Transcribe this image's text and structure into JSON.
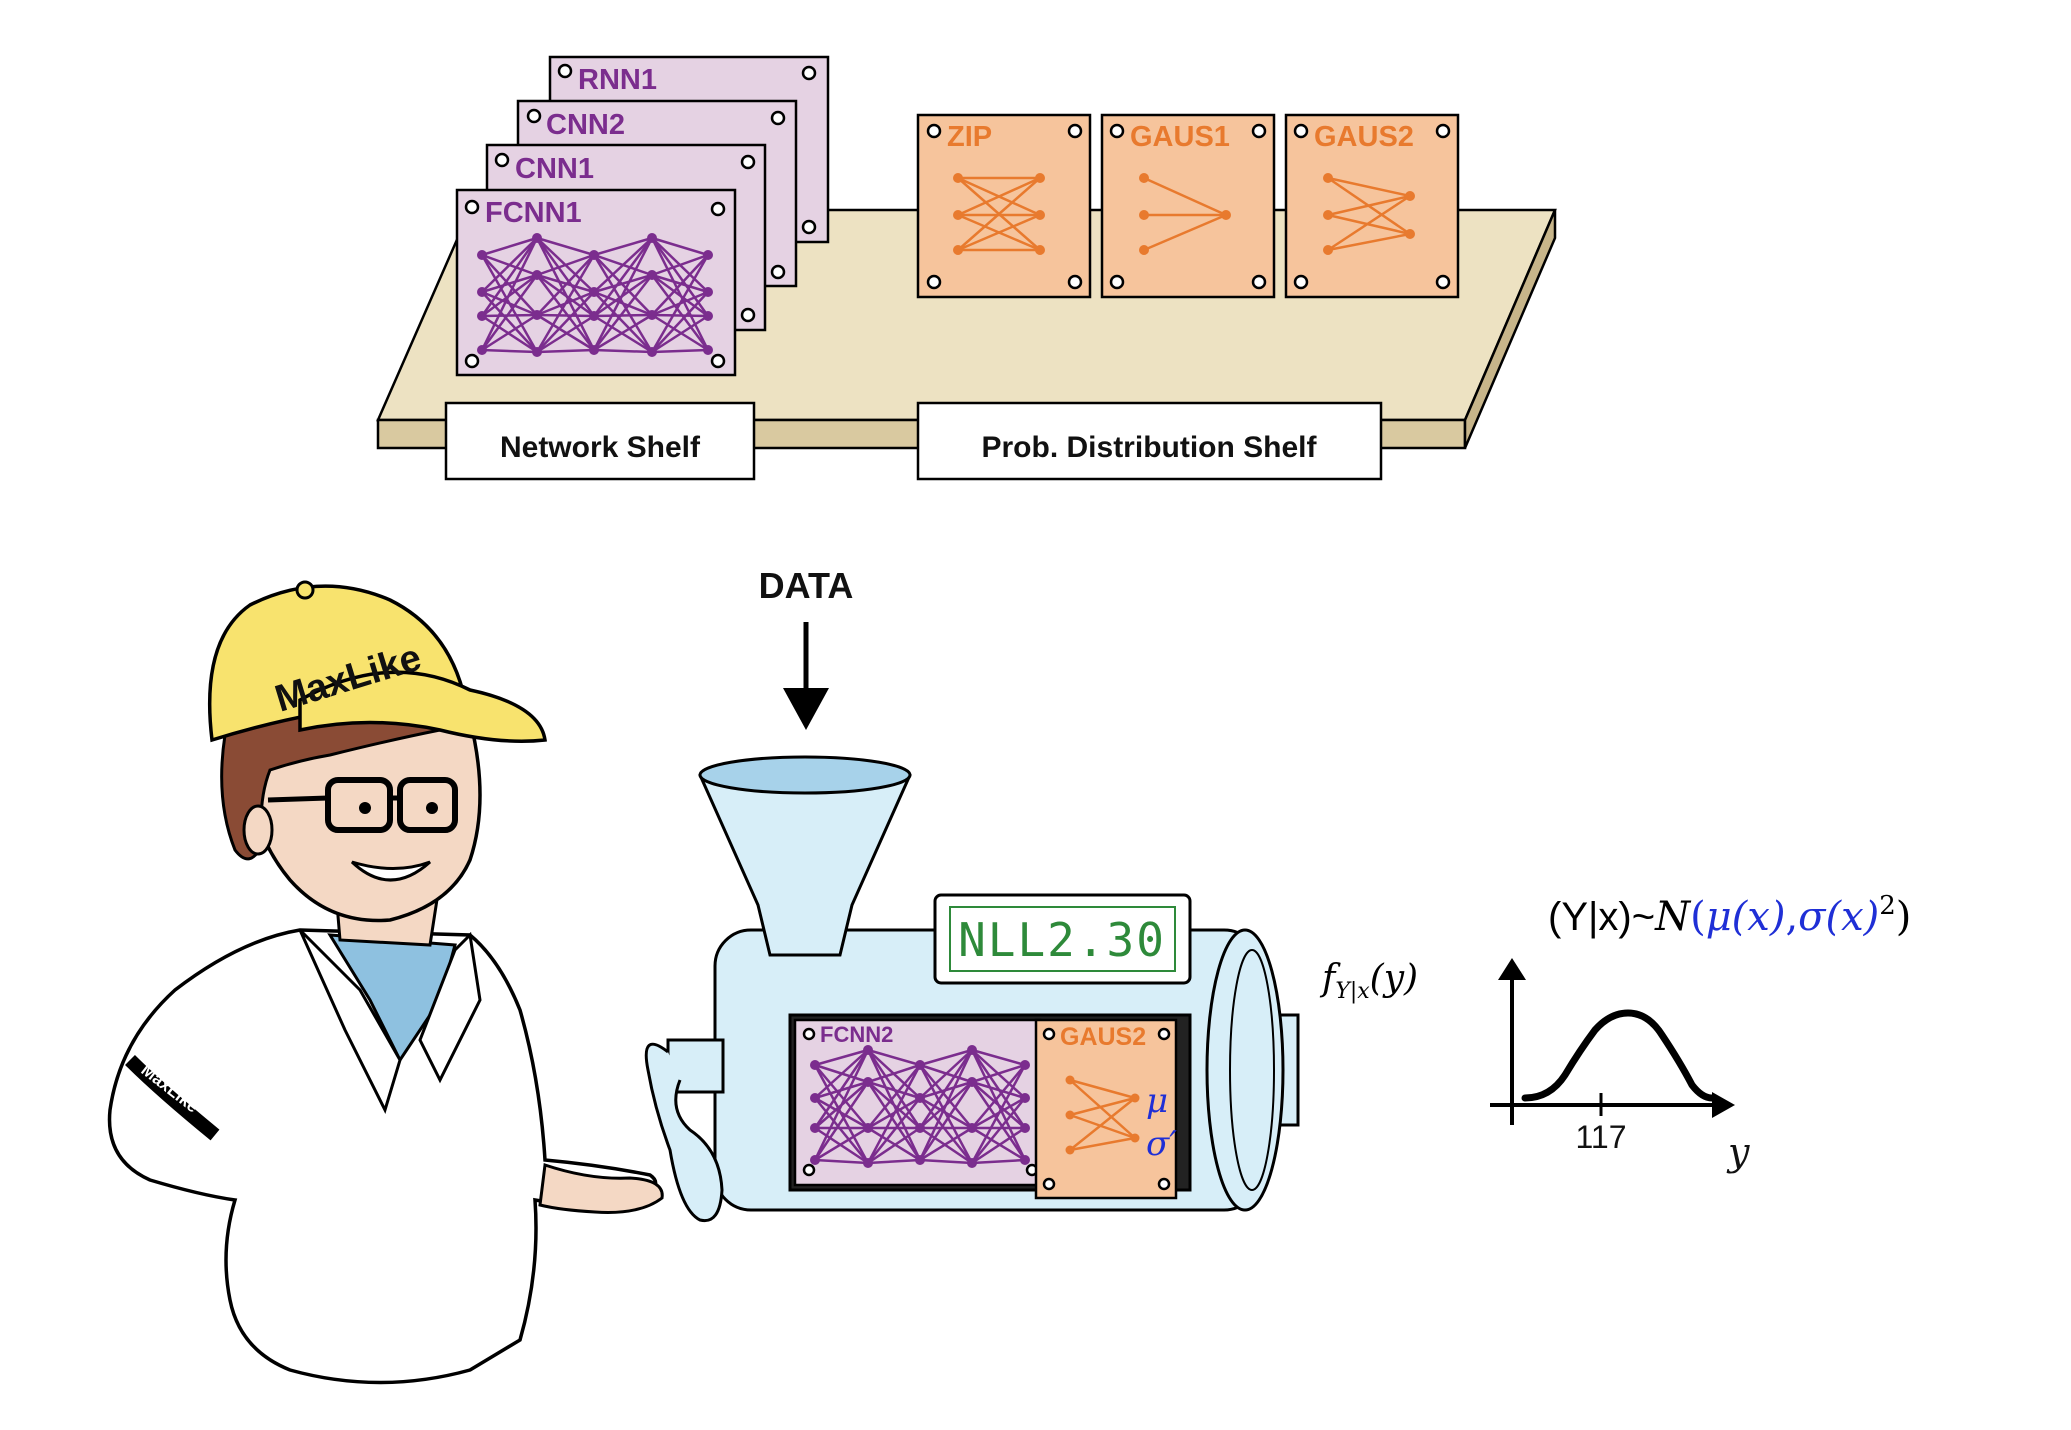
{
  "network_cards": [
    {
      "label": "RNN1"
    },
    {
      "label": "CNN2"
    },
    {
      "label": "CNN1"
    },
    {
      "label": "FCNN1"
    }
  ],
  "distribution_cards": [
    {
      "label": "ZIP"
    },
    {
      "label": "GAUS1"
    },
    {
      "label": "GAUS2"
    }
  ],
  "shelves": {
    "network_label": "Network Shelf",
    "distribution_label": "Prob. Distribution Shelf"
  },
  "machine": {
    "input_label": "DATA",
    "display": "NLL2.30",
    "network_slot": "FCNN2",
    "distribution_slot": "GAUS2",
    "output_mu": "μ",
    "output_sigma": "σ′"
  },
  "character": {
    "cap_text": "MaxLike",
    "sleeve_text": "MaxLike"
  },
  "formula": {
    "prefix": "(Y|x)~",
    "dist": "N",
    "open": "(",
    "mu": "μ(x)",
    "comma": ",",
    "sigma": "σ(x)",
    "power": "2",
    "close": ")"
  },
  "plot": {
    "ylabel_f": "f",
    "ylabel_sub": "Y|x",
    "ylabel_arg": "(y)",
    "tick_label": "117",
    "xlabel": "y"
  },
  "colors": {
    "purple": "#7B2D8E",
    "purple_card": "#E5D2E3",
    "orange": "#E87A2E",
    "orange_card": "#F6C49C",
    "shelf": "#EDE2C2",
    "machine": "#D7EEF8",
    "cap": "#F8E36E",
    "blue_text": "#1F2FD6",
    "display_text": "#2E8A3A"
  }
}
